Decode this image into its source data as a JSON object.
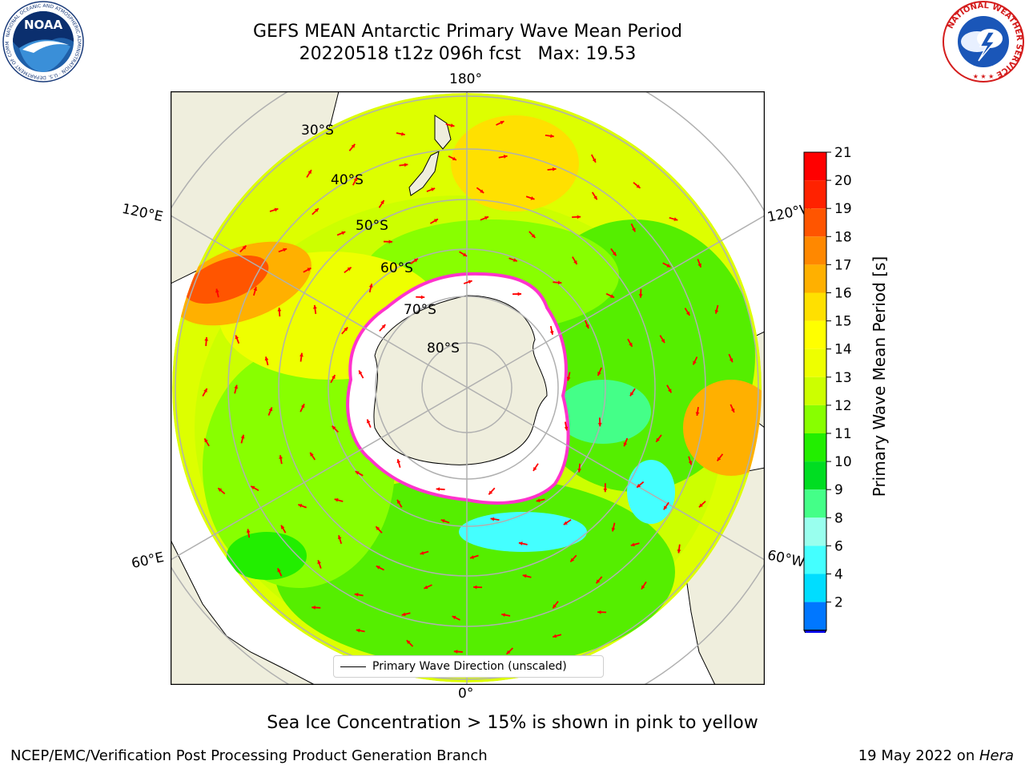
{
  "title": {
    "line1": "GEFS MEAN Antarctic Primary Wave Mean Period",
    "line2": "20220518 t12z 096h fcst   Max: 19.53"
  },
  "logos": {
    "left": {
      "name": "NOAA",
      "text": "NOAA",
      "ring_text": "NATIONAL OCEANIC AND ATMOSPHERIC ADMINISTRATION · U.S. DEPARTMENT OF COMMERCE"
    },
    "right": {
      "name": "National Weather Service",
      "ring_text": "NATIONAL WEATHER SERVICE"
    }
  },
  "map": {
    "projection": "south polar stereographic",
    "lon_labels": {
      "top": "180°",
      "bottom": "0°",
      "left_upper": "120°E",
      "left_lower": "60°E",
      "right_upper": "120°W",
      "right_lower": "60°W"
    },
    "lat_labels": [
      "30°S",
      "40°S",
      "50°S",
      "60°S",
      "70°S",
      "80°S"
    ],
    "field": "Primary Wave Mean Period",
    "max_value": 19.53
  },
  "colorbar": {
    "label": "Primary Wave Mean Period [s]",
    "ticks": [
      "21",
      "20",
      "19",
      "18",
      "17",
      "16",
      "15",
      "14",
      "13",
      "12",
      "11",
      "10",
      "9",
      "8",
      "6",
      "4",
      "2"
    ],
    "colors": [
      "#ff0000",
      "#ff2200",
      "#ff5500",
      "#ff8800",
      "#ffb000",
      "#ffe000",
      "#ffff00",
      "#eeff00",
      "#ccff00",
      "#88ff00",
      "#22ee00",
      "#00dd22",
      "#44ff88",
      "#99ffee",
      "#44ffff",
      "#00ddff",
      "#0077ff"
    ],
    "extend_color": "#0000ee"
  },
  "legend": {
    "label": "Primary Wave Direction (unscaled)"
  },
  "note": "Sea Ice Concentration > 15% is shown in pink to yellow",
  "footer": {
    "left": "NCEP/EMC/Verification Post Processing Product Generation Branch",
    "right_prefix": "19 May 2022 on ",
    "right_host": "Hera"
  }
}
